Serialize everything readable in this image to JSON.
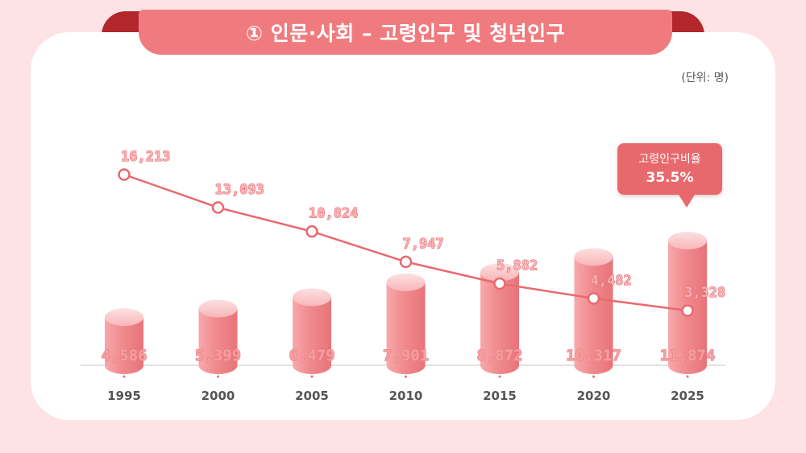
{
  "title": "① 인문·사회 – 고령인구 및 청년인구",
  "unit": "(단위: 명)",
  "callout": {
    "title": "고령인구비율",
    "value": "35.5%"
  },
  "colors": {
    "bar": "#f08a8e",
    "line": "#e86a6f",
    "banner": "#ef7b7f",
    "accent_dark": "#b3262c"
  },
  "chart_data": {
    "type": "bar",
    "categories": [
      "1995",
      "2000",
      "2005",
      "2010",
      "2015",
      "2020",
      "2025"
    ],
    "series": [
      {
        "type": "bar",
        "values": [
          4586,
          5399,
          6479,
          7901,
          8872,
          10317,
          11874
        ],
        "labels": [
          "4,586",
          "5,399",
          "6,479",
          "7,901",
          "8,872",
          "10,317",
          "11,874"
        ]
      },
      {
        "type": "line",
        "values": [
          16213,
          13093,
          10824,
          7947,
          5882,
          4482,
          3328
        ],
        "labels": [
          "16,213",
          "13,093",
          "10,824",
          "7,947",
          "5,882",
          "4,482",
          "3,328"
        ]
      }
    ],
    "ylim": [
      0,
      20000
    ],
    "grid": false
  }
}
